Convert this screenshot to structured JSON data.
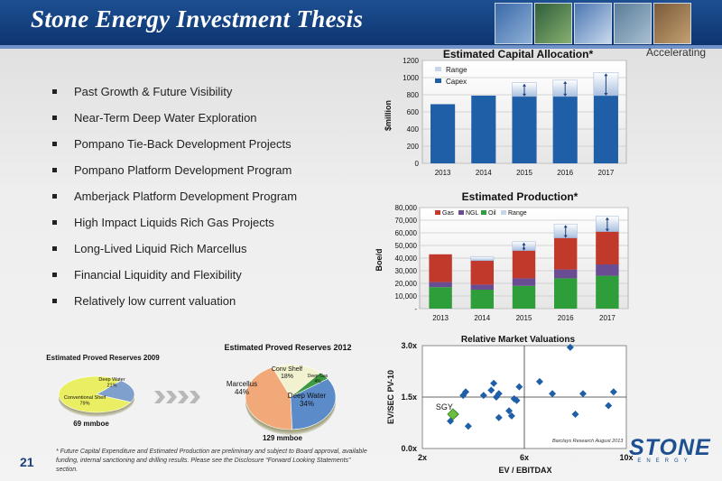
{
  "header": {
    "title": "Stone Energy Investment Thesis",
    "tag": "Accelerating"
  },
  "bullets": [
    "Past Growth & Future Visibility",
    "Near-Term Deep Water Exploration",
    "Pompano Tie-Back Development Projects",
    "Pompano Platform Development Program",
    "Amberjack Platform Development Program",
    "High Impact Liquids Rich Gas Projects",
    "Long-Lived Liquid Rich Marcellus",
    "Financial Liquidity and Flexibility",
    "Relatively low current valuation"
  ],
  "page_number": "21",
  "footnote": "* Future Capital Expenditure and Estimated Production are preliminary and subject to Board approval, available funding, internal sanctioning and drilling results. Please see the Disclosure “Forward Looking Statements” section.",
  "logo": {
    "text": "STONE",
    "sub": "ENERGY"
  },
  "colors": {
    "header": "#1d4f91",
    "capex": "#1f5fa8",
    "gas": "#c0392b",
    "ngl": "#6a4c93",
    "oil": "#2e9e3a",
    "diamond": "#1f5fa8",
    "sgy": "#6abf3d"
  },
  "chart_data": [
    {
      "type": "bar",
      "title": "Estimated Capital Allocation*",
      "ylabel": "$million",
      "categories": [
        "2013",
        "2014",
        "2015",
        "2016",
        "2017"
      ],
      "ylim": [
        0,
        1200
      ],
      "yticks": [
        "0",
        "200",
        "400",
        "600",
        "800",
        "1000",
        "1200"
      ],
      "legend": [
        "Range",
        "Capex"
      ],
      "series": [
        {
          "name": "Capex",
          "values": [
            690,
            790,
            780,
            780,
            790
          ]
        },
        {
          "name": "Range",
          "values": [
            0,
            0,
            160,
            190,
            270
          ]
        }
      ]
    },
    {
      "type": "bar",
      "stacked": true,
      "title": "Estimated Production*",
      "ylabel": "Boe/d",
      "categories": [
        "2013",
        "2014",
        "2015",
        "2016",
        "2017"
      ],
      "ylim": [
        0,
        80000
      ],
      "yticks": [
        "-",
        "10,000",
        "20,000",
        "30,000",
        "40,000",
        "50,000",
        "60,000",
        "70,000",
        "80,000"
      ],
      "legend": [
        "Gas",
        "NGL",
        "Oil",
        "Range"
      ],
      "series": [
        {
          "name": "Oil",
          "values": [
            17000,
            15000,
            18000,
            24000,
            26000
          ]
        },
        {
          "name": "NGL",
          "values": [
            4000,
            4000,
            6000,
            7000,
            9000
          ]
        },
        {
          "name": "Gas",
          "values": [
            22000,
            19000,
            22000,
            25000,
            26000
          ]
        },
        {
          "name": "Range",
          "values": [
            0,
            3000,
            7000,
            11000,
            12000
          ]
        }
      ]
    },
    {
      "type": "scatter",
      "title": "Relative Market Valuations",
      "xlabel": "EV / EBITDAX",
      "ylabel": "EV/SEC PV-10",
      "xlim": [
        2,
        10
      ],
      "ylim": [
        0,
        3
      ],
      "xticks": [
        "2x",
        "6x",
        "10x"
      ],
      "yticks": [
        "0.0x",
        "1.5x",
        "3.0x"
      ],
      "points": [
        [
          3.1,
          0.8
        ],
        [
          3.3,
          1.0
        ],
        [
          3.6,
          1.55
        ],
        [
          3.7,
          1.65
        ],
        [
          3.8,
          0.65
        ],
        [
          4.4,
          1.55
        ],
        [
          4.7,
          1.7
        ],
        [
          4.8,
          1.9
        ],
        [
          4.9,
          1.5
        ],
        [
          5.0,
          1.6
        ],
        [
          5.0,
          0.9
        ],
        [
          5.4,
          1.1
        ],
        [
          5.5,
          0.95
        ],
        [
          5.6,
          1.45
        ],
        [
          5.7,
          1.4
        ],
        [
          5.8,
          1.8
        ],
        [
          6.6,
          1.95
        ],
        [
          7.1,
          1.6
        ],
        [
          7.8,
          2.95
        ],
        [
          8.0,
          1.0
        ],
        [
          8.3,
          1.6
        ],
        [
          9.3,
          1.25
        ],
        [
          9.5,
          1.65
        ]
      ],
      "highlight": {
        "label": "SGY",
        "x": 3.2,
        "y": 1.0
      },
      "annotation": "Barclays Research August 2013"
    },
    {
      "type": "pie",
      "title": "Estimated Proved Reserves 2009",
      "slices": [
        {
          "label": "Deep Water",
          "pct": "21%",
          "value": 21
        },
        {
          "label": "Conventional Shelf",
          "pct": "79%",
          "value": 79
        }
      ],
      "total": "69 mmboe"
    },
    {
      "type": "pie",
      "title": "Estimated Proved Reserves 2012",
      "slices": [
        {
          "label": "Marcellus",
          "pct": "44%",
          "value": 44
        },
        {
          "label": "Conv Shelf",
          "pct": "18%",
          "value": 18
        },
        {
          "label": "Deep Gas",
          "pct": "4%",
          "value": 4
        },
        {
          "label": "Deep Water",
          "pct": "34%",
          "value": 34
        }
      ],
      "total": "129 mmboe"
    }
  ]
}
